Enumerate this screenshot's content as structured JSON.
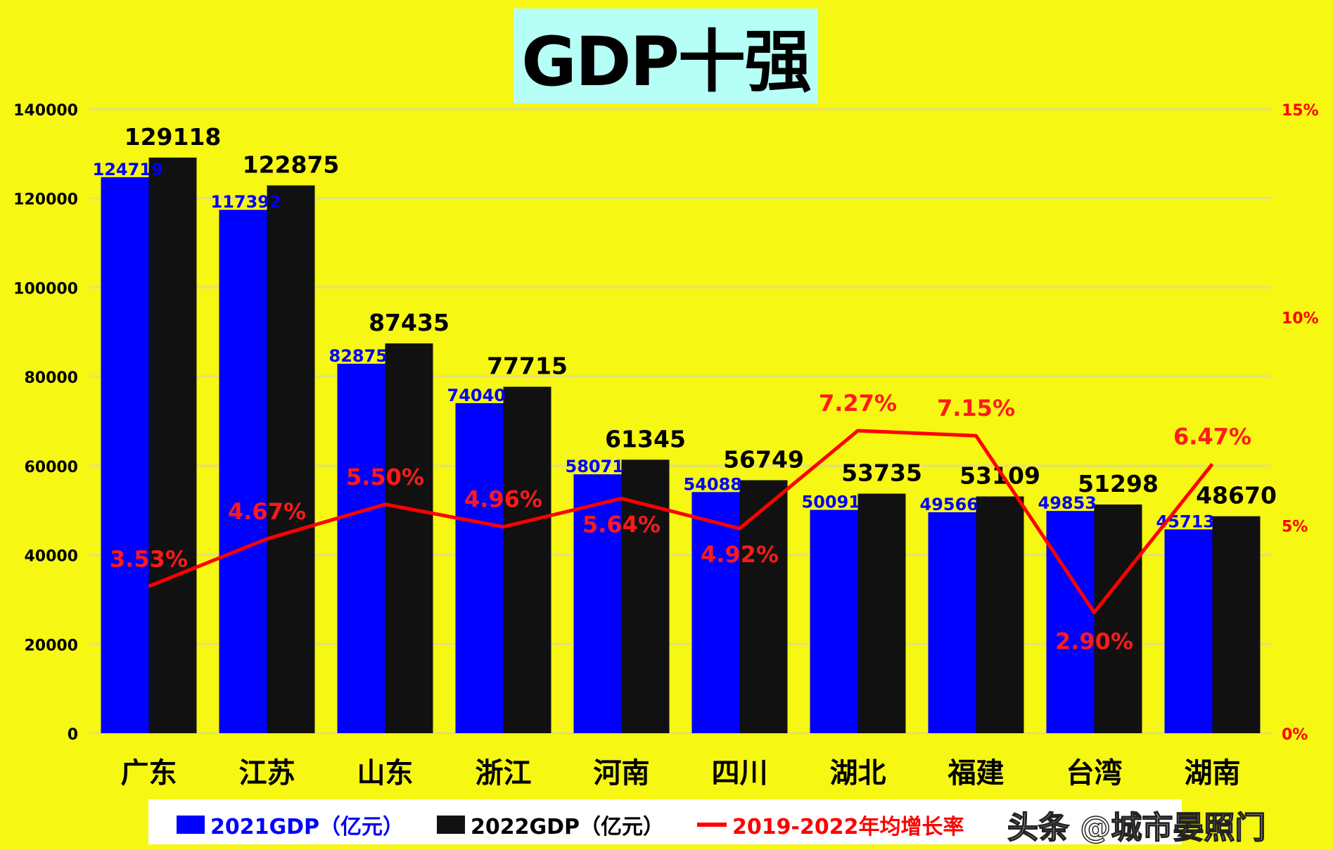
{
  "chart_data": {
    "type": "bar",
    "title": "GDP十强",
    "categories": [
      "广东",
      "江苏",
      "山东",
      "浙江",
      "河南",
      "四川",
      "湖北",
      "福建",
      "台湾",
      "湖南"
    ],
    "series": [
      {
        "name": "2021GDP（亿元）",
        "type": "bar",
        "axis": "left",
        "color": "#0000ff",
        "values": [
          124719,
          117392,
          82875,
          74040,
          58071,
          54088,
          50091,
          49566,
          49853,
          45713
        ]
      },
      {
        "name": "2022GDP（亿元）",
        "type": "bar",
        "axis": "left",
        "color": "#111111",
        "values": [
          129118,
          122875,
          87435,
          77715,
          61345,
          56749,
          53735,
          53109,
          51298,
          48670
        ]
      },
      {
        "name": "2019-2022年均增长率",
        "type": "line",
        "axis": "right",
        "color": "#ff0000",
        "values": [
          3.53,
          4.67,
          5.5,
          4.96,
          5.64,
          4.92,
          7.27,
          7.15,
          2.9,
          6.47
        ],
        "labels": [
          "3.53%",
          "4.67%",
          "5.50%",
          "4.96%",
          "5.64%",
          "4.92%",
          "7.27%",
          "7.15%",
          "2.90%",
          "6.47%"
        ]
      }
    ],
    "ylim": [
      0,
      140000
    ],
    "yticks": [
      "0",
      "20000",
      "40000",
      "60000",
      "80000",
      "100000",
      "120000",
      "140000"
    ],
    "y2lim": [
      0,
      15
    ],
    "y2ticks": [
      "0%",
      "5%",
      "10%",
      "15%"
    ],
    "grid": true,
    "legend_position": "bottom"
  },
  "watermark": "头条 @城市晏照门"
}
